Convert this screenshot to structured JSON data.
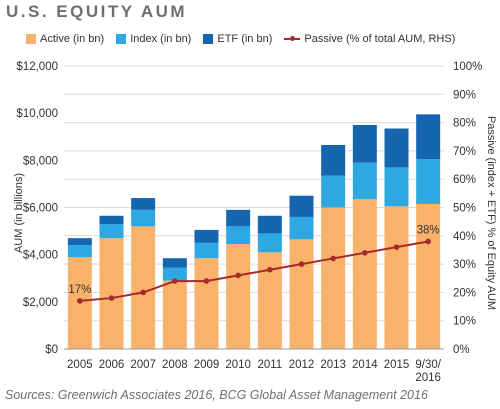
{
  "title": "U.S. EQUITY AUM",
  "source": "Sources: Greenwich Associates 2016, BCG Global Asset Management 2016",
  "colors": {
    "active": "#f9b26b",
    "index": "#2ea8e0",
    "etf": "#1565b0",
    "passive": "#a52a2a",
    "grid": "#d9d9d9"
  },
  "chart_data": {
    "type": "bar",
    "stacked": true,
    "categories": [
      "2005",
      "2006",
      "2007",
      "2008",
      "2009",
      "2010",
      "2011",
      "2012",
      "2013",
      "2014",
      "2015",
      "9/30/\n2016"
    ],
    "series": [
      {
        "name": "Active (in bn)",
        "axis": "left",
        "values": [
          3900,
          4700,
          5200,
          2900,
          3850,
          4450,
          4100,
          4650,
          6000,
          6350,
          6050,
          6150
        ]
      },
      {
        "name": "Index (in bn)",
        "axis": "left",
        "values": [
          500,
          600,
          700,
          550,
          650,
          750,
          800,
          950,
          1350,
          1550,
          1650,
          1900
        ]
      },
      {
        "name": "ETF (in bn)",
        "axis": "left",
        "values": [
          300,
          350,
          500,
          400,
          550,
          700,
          750,
          900,
          1300,
          1600,
          1650,
          1900
        ]
      },
      {
        "name": "Passive (% of total AUM, RHS)",
        "type": "line",
        "axis": "right",
        "values": [
          17,
          18,
          20,
          24,
          24,
          26,
          28,
          30,
          32,
          34,
          36,
          38
        ]
      }
    ],
    "ylabel": "AUM (in billions)",
    "y2label": "Passive (index + ETF) % of Equity AUM",
    "ylim": [
      0,
      12000
    ],
    "y2lim": [
      0,
      100
    ],
    "yticks": [
      "$0",
      "$2,000",
      "$4,000",
      "$6,000",
      "$8,000",
      "$10,000",
      "$12,000"
    ],
    "y2ticks": [
      "0%",
      "10%",
      "20%",
      "30%",
      "40%",
      "50%",
      "60%",
      "70%",
      "80%",
      "90%",
      "100%"
    ],
    "annotations": {
      "first": "17%",
      "last": "38%"
    },
    "grid": true,
    "legend": "top"
  }
}
